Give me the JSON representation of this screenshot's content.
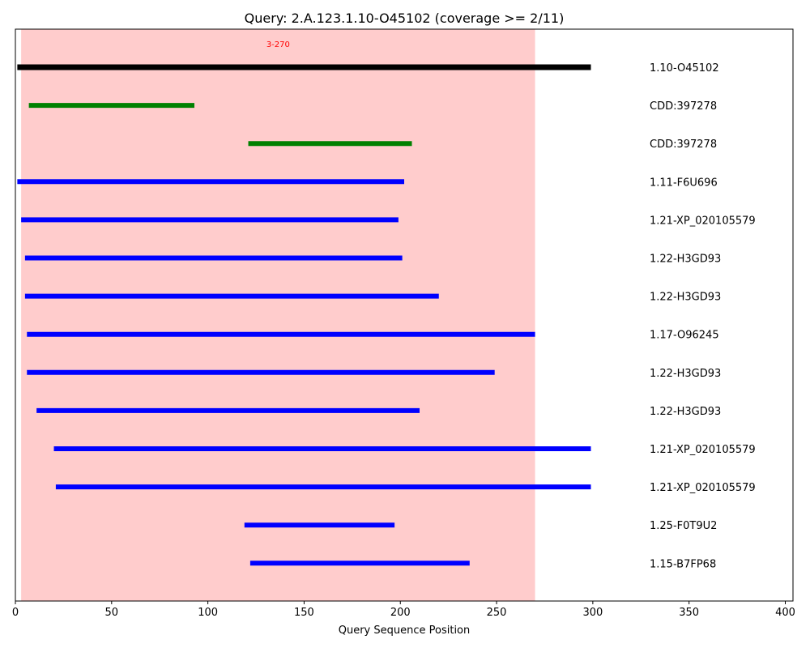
{
  "chart_data": {
    "type": "bar",
    "title": "Query: 2.A.123.1.10-O45102 (coverage >= 2/11)",
    "xlabel": "Query Sequence Position",
    "ylabel": "",
    "xlim": [
      0,
      404
    ],
    "xticks": [
      0,
      50,
      100,
      150,
      200,
      250,
      300,
      350,
      400
    ],
    "grid": false,
    "highlight": {
      "start": 3,
      "end": 270,
      "label": "3-270",
      "fill_color": "#ffcccc",
      "label_color": "#ff0000"
    },
    "series": [
      {
        "label": "1.10-O45102",
        "start": 1,
        "end": 299,
        "color": "#000000"
      },
      {
        "label": "CDD:397278",
        "start": 7,
        "end": 93,
        "color": "#008000"
      },
      {
        "label": "CDD:397278",
        "start": 121,
        "end": 206,
        "color": "#008000"
      },
      {
        "label": "1.11-F6U696",
        "start": 1,
        "end": 202,
        "color": "#0000ff"
      },
      {
        "label": "1.21-XP_020105579",
        "start": 3,
        "end": 199,
        "color": "#0000ff"
      },
      {
        "label": "1.22-H3GD93",
        "start": 5,
        "end": 201,
        "color": "#0000ff"
      },
      {
        "label": "1.22-H3GD93",
        "start": 5,
        "end": 220,
        "color": "#0000ff"
      },
      {
        "label": "1.17-O96245",
        "start": 6,
        "end": 270,
        "color": "#0000ff"
      },
      {
        "label": "1.22-H3GD93",
        "start": 6,
        "end": 249,
        "color": "#0000ff"
      },
      {
        "label": "1.22-H3GD93",
        "start": 11,
        "end": 210,
        "color": "#0000ff"
      },
      {
        "label": "1.21-XP_020105579",
        "start": 20,
        "end": 299,
        "color": "#0000ff"
      },
      {
        "label": "1.21-XP_020105579",
        "start": 21,
        "end": 299,
        "color": "#0000ff"
      },
      {
        "label": "1.25-F0T9U2",
        "start": 119,
        "end": 197,
        "color": "#0000ff"
      },
      {
        "label": "1.15-B7FP68",
        "start": 122,
        "end": 236,
        "color": "#0000ff"
      }
    ]
  }
}
